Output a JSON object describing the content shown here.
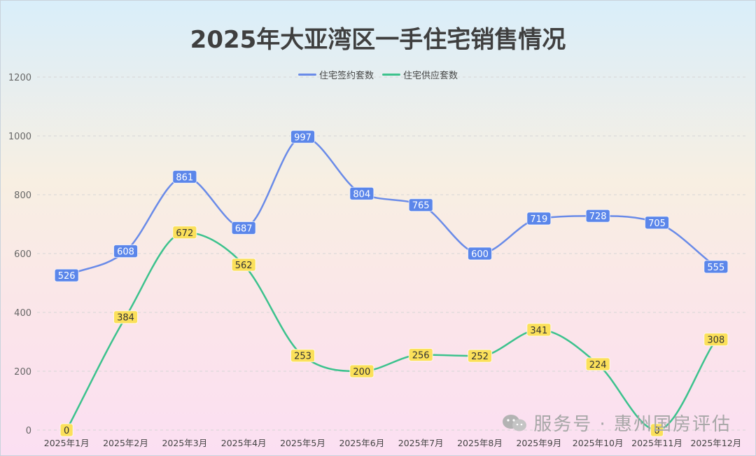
{
  "chart_data": {
    "type": "line",
    "title": "2025年大亚湾区一手住宅销售情况",
    "categories": [
      "2025年1月",
      "2025年2月",
      "2025年3月",
      "2025年4月",
      "2025年5月",
      "2025年6月",
      "2025年7月",
      "2025年8月",
      "2025年9月",
      "2025年10月",
      "2025年11月",
      "2025年12月"
    ],
    "series": [
      {
        "name": "住宅签约套数",
        "color": "#6a8be8",
        "label_bg": "#5b86ea",
        "label_color": "#ffffff",
        "values": [
          526,
          608,
          861,
          687,
          997,
          804,
          765,
          600,
          719,
          728,
          705,
          555
        ]
      },
      {
        "name": "住宅供应套数",
        "color": "#3cc28d",
        "label_bg": "#fbe05a",
        "label_color": "#333333",
        "values": [
          0,
          384,
          672,
          562,
          253,
          200,
          256,
          252,
          341,
          224,
          0,
          308
        ]
      }
    ],
    "yticks": [
      0,
      200,
      400,
      600,
      800,
      1000,
      1200
    ],
    "ylim": [
      0,
      1200
    ],
    "xlabel": "",
    "ylabel": "",
    "grid": true,
    "legend_position": "top-center"
  },
  "watermark": {
    "text": "服务号 · 惠州国房评估",
    "icon": "wechat-icon"
  }
}
